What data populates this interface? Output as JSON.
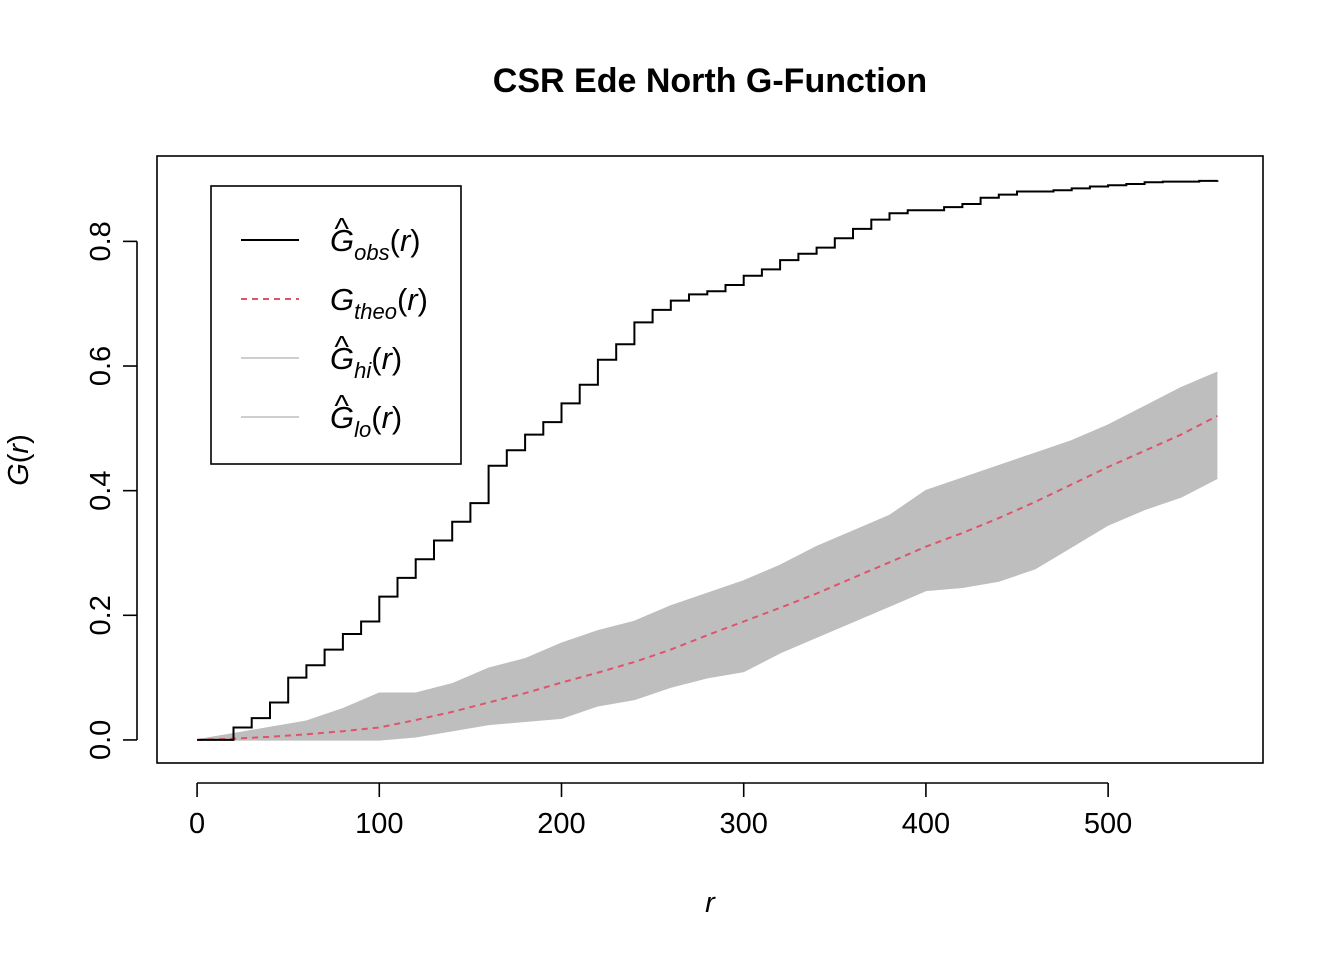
{
  "chart_data": {
    "type": "line",
    "title": "CSR Ede North G-Function",
    "xlabel": "r",
    "ylabel": "G(r)",
    "xlim": [
      -22,
      585
    ],
    "ylim": [
      -0.037,
      0.937
    ],
    "x_ticks": [
      0,
      100,
      200,
      300,
      400,
      500
    ],
    "x_tick_labels": [
      "0",
      "100",
      "200",
      "300",
      "400",
      "500"
    ],
    "y_ticks": [
      0.0,
      0.2,
      0.4,
      0.6,
      0.8
    ],
    "y_tick_labels": [
      "0.0",
      "0.2",
      "0.4",
      "0.6",
      "0.8"
    ],
    "grid": false,
    "legend_position": "top-left",
    "legend": [
      {
        "key": "obs",
        "label": "G",
        "sub": "obs",
        "suffix": "(r)",
        "hat": "^",
        "color": "#000000",
        "style": "solid"
      },
      {
        "key": "theo",
        "label": "G",
        "sub": "theo",
        "suffix": "(r)",
        "hat": "",
        "color": "#DF536B",
        "style": "dashed"
      },
      {
        "key": "hi",
        "label": "G",
        "sub": "hi",
        "suffix": "(r)",
        "hat": "^",
        "color": "#BEBEBE",
        "style": "solid"
      },
      {
        "key": "lo",
        "label": "G",
        "sub": "lo",
        "suffix": "(r)",
        "hat": "^",
        "color": "#BEBEBE",
        "style": "solid"
      }
    ],
    "series": [
      {
        "name": "obs",
        "color": "#000000",
        "x": [
          0,
          10,
          20,
          30,
          40,
          50,
          60,
          70,
          80,
          90,
          100,
          110,
          120,
          130,
          140,
          150,
          160,
          170,
          180,
          190,
          200,
          210,
          220,
          230,
          240,
          250,
          260,
          270,
          280,
          290,
          300,
          310,
          320,
          330,
          340,
          350,
          360,
          370,
          380,
          390,
          400,
          410,
          420,
          430,
          440,
          450,
          460,
          470,
          480,
          490,
          500,
          510,
          520,
          530,
          540,
          550,
          560
        ],
        "values": [
          0.0,
          0.0,
          0.02,
          0.035,
          0.06,
          0.1,
          0.12,
          0.145,
          0.17,
          0.19,
          0.23,
          0.26,
          0.29,
          0.32,
          0.35,
          0.38,
          0.44,
          0.465,
          0.49,
          0.51,
          0.54,
          0.57,
          0.61,
          0.635,
          0.67,
          0.69,
          0.705,
          0.715,
          0.72,
          0.73,
          0.745,
          0.755,
          0.77,
          0.78,
          0.79,
          0.805,
          0.82,
          0.835,
          0.845,
          0.85,
          0.85,
          0.855,
          0.86,
          0.87,
          0.875,
          0.88,
          0.88,
          0.882,
          0.885,
          0.888,
          0.89,
          0.892,
          0.895,
          0.896,
          0.896,
          0.897,
          0.898
        ]
      },
      {
        "name": "theo",
        "color": "#DF536B",
        "x": [
          0,
          20,
          40,
          60,
          80,
          100,
          120,
          140,
          160,
          180,
          200,
          220,
          240,
          260,
          280,
          300,
          320,
          340,
          360,
          380,
          400,
          420,
          440,
          460,
          480,
          500,
          520,
          540,
          560
        ],
        "values": [
          0.0,
          0.002,
          0.005,
          0.009,
          0.014,
          0.02,
          0.032,
          0.045,
          0.06,
          0.075,
          0.092,
          0.108,
          0.125,
          0.145,
          0.168,
          0.19,
          0.212,
          0.235,
          0.26,
          0.285,
          0.31,
          0.332,
          0.356,
          0.382,
          0.41,
          0.438,
          0.464,
          0.49,
          0.52
        ]
      },
      {
        "name": "hi",
        "color": "#BEBEBE",
        "x": [
          0,
          20,
          40,
          60,
          80,
          100,
          120,
          140,
          160,
          180,
          200,
          220,
          240,
          260,
          280,
          300,
          320,
          340,
          360,
          380,
          400,
          420,
          440,
          460,
          480,
          500,
          520,
          540,
          560
        ],
        "values": [
          0.0,
          0.01,
          0.02,
          0.03,
          0.05,
          0.075,
          0.075,
          0.09,
          0.115,
          0.13,
          0.155,
          0.175,
          0.19,
          0.215,
          0.235,
          0.255,
          0.28,
          0.31,
          0.335,
          0.36,
          0.4,
          0.42,
          0.44,
          0.46,
          0.48,
          0.505,
          0.535,
          0.565,
          0.59
        ]
      },
      {
        "name": "lo",
        "color": "#BEBEBE",
        "x": [
          0,
          20,
          40,
          60,
          80,
          100,
          120,
          140,
          160,
          180,
          200,
          220,
          240,
          260,
          280,
          300,
          320,
          340,
          360,
          380,
          400,
          420,
          440,
          460,
          480,
          500,
          520,
          540,
          560
        ],
        "values": [
          0.0,
          0.0,
          0.0,
          0.0,
          0.0,
          0.0,
          0.005,
          0.015,
          0.025,
          0.03,
          0.035,
          0.055,
          0.065,
          0.085,
          0.1,
          0.11,
          0.14,
          0.165,
          0.19,
          0.215,
          0.24,
          0.245,
          0.255,
          0.275,
          0.31,
          0.345,
          0.37,
          0.39,
          0.42
        ]
      }
    ]
  }
}
